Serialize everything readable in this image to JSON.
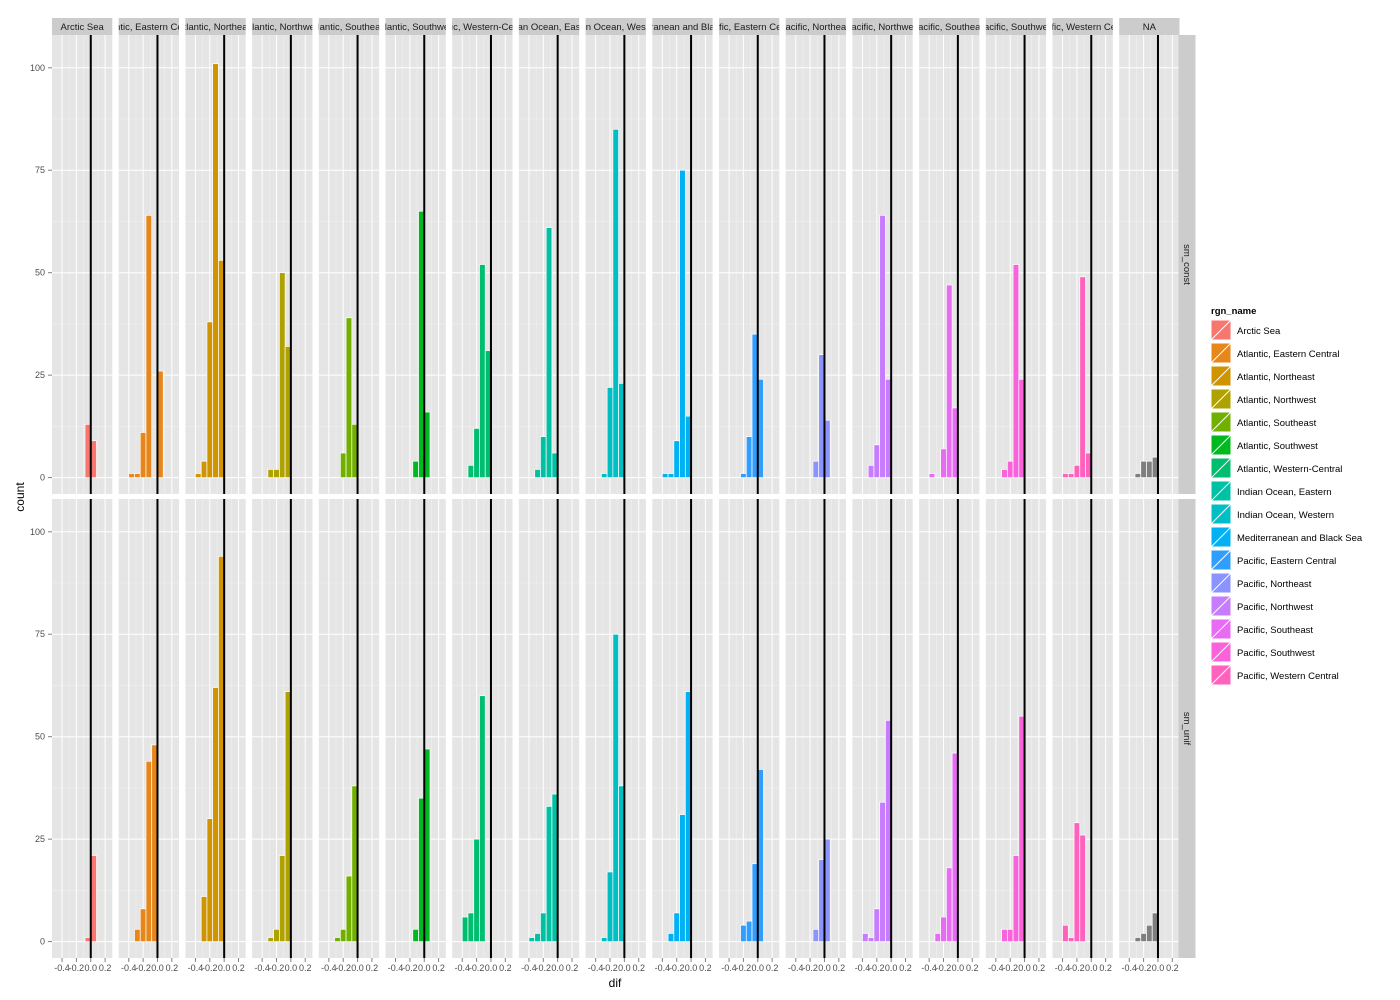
{
  "chart_data": {
    "type": "bar",
    "xlabel": "dif",
    "ylabel": "count",
    "ylim": [
      -4,
      108
    ],
    "xlim": [
      -0.54,
      0.3
    ],
    "x_ticks": [
      -0.4,
      -0.2,
      0.0,
      0.2
    ],
    "x_tick_labels": [
      "-0.4",
      "-0.2",
      "0.0",
      "0.2"
    ],
    "y_ticks": [
      0,
      25,
      50,
      75,
      100
    ],
    "y_tick_labels": [
      "0",
      "25",
      "50",
      "75",
      "100"
    ],
    "vline_x": 0.0,
    "bin_width": 0.08,
    "grid": true,
    "legend_position": "right",
    "legend": {
      "title": "rgn_name",
      "entries": [
        {
          "label": "Arctic Sea",
          "color": "#F8766D"
        },
        {
          "label": "Atlantic, Eastern Central",
          "color": "#E7861B"
        },
        {
          "label": "Atlantic, Northeast",
          "color": "#CF9400"
        },
        {
          "label": "Atlantic, Northwest",
          "color": "#AFA100"
        },
        {
          "label": "Atlantic, Southeast",
          "color": "#72B000"
        },
        {
          "label": "Atlantic, Southwest",
          "color": "#00B81F"
        },
        {
          "label": "Atlantic, Western-Central",
          "color": "#00BE70"
        },
        {
          "label": "Indian Ocean, Eastern",
          "color": "#00C1A3"
        },
        {
          "label": "Indian Ocean, Western",
          "color": "#00BFC4"
        },
        {
          "label": "Mediterranean and Black Sea",
          "color": "#00B2F3"
        },
        {
          "label": "Pacific, Eastern Central",
          "color": "#309EFF"
        },
        {
          "label": "Pacific, Northeast",
          "color": "#8B93FF"
        },
        {
          "label": "Pacific, Northwest",
          "color": "#C77CFF"
        },
        {
          "label": "Pacific, Southeast",
          "color": "#E76BF3"
        },
        {
          "label": "Pacific, Southwest",
          "color": "#FA62DB"
        },
        {
          "label": "Pacific, Western Central",
          "color": "#FF62BC"
        }
      ]
    },
    "rows": [
      {
        "label": "sm_const"
      },
      {
        "label": "sm_unif"
      }
    ],
    "columns": [
      {
        "strip": "Arctic Sea",
        "color": "#F8766D",
        "bins": [
          [
            -0.04,
            13
          ],
          [
            0.04,
            9
          ]
        ],
        "bins2": [
          [
            -0.04,
            1
          ],
          [
            0.04,
            21
          ]
        ]
      },
      {
        "strip": "ntic, Eastern Ce",
        "color": "#E7861B",
        "bins": [
          [
            -0.36,
            1
          ],
          [
            -0.28,
            1
          ],
          [
            -0.2,
            11
          ],
          [
            -0.12,
            64
          ],
          [
            -0.04,
            0
          ],
          [
            0.04,
            26
          ]
        ],
        "bins2": [
          [
            -0.28,
            3
          ],
          [
            -0.2,
            8
          ],
          [
            -0.12,
            44
          ],
          [
            -0.04,
            48
          ]
        ]
      },
      {
        "strip": "tlantic, Northea",
        "color": "#CF9400",
        "bins": [
          [
            -0.36,
            1
          ],
          [
            -0.28,
            4
          ],
          [
            -0.2,
            38
          ],
          [
            -0.12,
            101
          ],
          [
            -0.04,
            53
          ]
        ],
        "bins2": [
          [
            -0.28,
            11
          ],
          [
            -0.2,
            30
          ],
          [
            -0.12,
            62
          ],
          [
            -0.04,
            94
          ]
        ]
      },
      {
        "strip": "tlantic, Northwe",
        "color": "#AFA100",
        "bins": [
          [
            -0.28,
            2
          ],
          [
            -0.2,
            2
          ],
          [
            -0.12,
            50
          ],
          [
            -0.04,
            32
          ]
        ],
        "bins2": [
          [
            -0.28,
            1
          ],
          [
            -0.2,
            3
          ],
          [
            -0.12,
            21
          ],
          [
            -0.04,
            61
          ]
        ]
      },
      {
        "strip": "lantic, Southea",
        "color": "#72B000",
        "bins": [
          [
            -0.2,
            6
          ],
          [
            -0.12,
            39
          ],
          [
            -0.04,
            13
          ]
        ],
        "bins2": [
          [
            -0.28,
            1
          ],
          [
            -0.2,
            3
          ],
          [
            -0.12,
            16
          ],
          [
            -0.04,
            38
          ]
        ]
      },
      {
        "strip": "tlantic, Southwe",
        "color": "#00B81F",
        "bins": [
          [
            -0.12,
            4
          ],
          [
            -0.04,
            65
          ],
          [
            0.04,
            16
          ]
        ],
        "bins2": [
          [
            -0.12,
            3
          ],
          [
            -0.04,
            35
          ],
          [
            0.04,
            47
          ]
        ]
      },
      {
        "strip": "ic, Western-Ce",
        "color": "#00BE70",
        "bins": [
          [
            -0.28,
            3
          ],
          [
            -0.2,
            12
          ],
          [
            -0.12,
            52
          ],
          [
            -0.04,
            31
          ]
        ],
        "bins2": [
          [
            -0.36,
            6
          ],
          [
            -0.28,
            7
          ],
          [
            -0.2,
            25
          ],
          [
            -0.12,
            60
          ]
        ]
      },
      {
        "strip": "an Ocean, Eas",
        "color": "#00C1A3",
        "bins": [
          [
            -0.28,
            2
          ],
          [
            -0.2,
            10
          ],
          [
            -0.12,
            61
          ],
          [
            -0.04,
            6
          ]
        ],
        "bins2": [
          [
            -0.36,
            1
          ],
          [
            -0.28,
            2
          ],
          [
            -0.2,
            7
          ],
          [
            -0.12,
            33
          ],
          [
            -0.04,
            36
          ]
        ]
      },
      {
        "strip": "n Ocean, Wes",
        "color": "#00BFC4",
        "bins": [
          [
            -0.28,
            1
          ],
          [
            -0.2,
            22
          ],
          [
            -0.12,
            85
          ],
          [
            -0.04,
            23
          ]
        ],
        "bins2": [
          [
            -0.28,
            1
          ],
          [
            -0.2,
            17
          ],
          [
            -0.12,
            75
          ],
          [
            -0.04,
            38
          ]
        ]
      },
      {
        "strip": "ranean and Bla",
        "color": "#00B2F3",
        "bins": [
          [
            -0.36,
            1
          ],
          [
            -0.28,
            1
          ],
          [
            -0.2,
            9
          ],
          [
            -0.12,
            75
          ],
          [
            -0.04,
            15
          ]
        ],
        "bins2": [
          [
            -0.28,
            2
          ],
          [
            -0.2,
            7
          ],
          [
            -0.12,
            31
          ],
          [
            -0.04,
            61
          ]
        ]
      },
      {
        "strip": "ific, Eastern Ce",
        "color": "#309EFF",
        "bins": [
          [
            -0.2,
            1
          ],
          [
            -0.12,
            10
          ],
          [
            -0.04,
            35
          ],
          [
            0.04,
            24
          ]
        ],
        "bins2": [
          [
            -0.2,
            4
          ],
          [
            -0.12,
            5
          ],
          [
            -0.04,
            19
          ],
          [
            0.04,
            42
          ]
        ]
      },
      {
        "strip": "acific, Northea",
        "color": "#8B93FF",
        "bins": [
          [
            -0.12,
            4
          ],
          [
            -0.04,
            30
          ],
          [
            0.04,
            14
          ]
        ],
        "bins2": [
          [
            -0.12,
            3
          ],
          [
            -0.04,
            20
          ],
          [
            0.04,
            25
          ]
        ]
      },
      {
        "strip": "acific, Northwe",
        "color": "#C77CFF",
        "bins": [
          [
            -0.28,
            3
          ],
          [
            -0.2,
            8
          ],
          [
            -0.12,
            64
          ],
          [
            -0.04,
            24
          ]
        ],
        "bins2": [
          [
            -0.36,
            2
          ],
          [
            -0.28,
            1
          ],
          [
            -0.2,
            8
          ],
          [
            -0.12,
            34
          ],
          [
            -0.04,
            54
          ]
        ]
      },
      {
        "strip": "acific, Southea",
        "color": "#E76BF3",
        "bins": [
          [
            -0.36,
            1
          ],
          [
            -0.2,
            7
          ],
          [
            -0.12,
            47
          ],
          [
            -0.04,
            17
          ]
        ],
        "bins2": [
          [
            -0.28,
            2
          ],
          [
            -0.2,
            6
          ],
          [
            -0.12,
            18
          ],
          [
            -0.04,
            46
          ]
        ]
      },
      {
        "strip": "acific, Southwe",
        "color": "#FA62DB",
        "bins": [
          [
            -0.28,
            2
          ],
          [
            -0.2,
            4
          ],
          [
            -0.12,
            52
          ],
          [
            -0.04,
            24
          ]
        ],
        "bins2": [
          [
            -0.28,
            3
          ],
          [
            -0.2,
            3
          ],
          [
            -0.12,
            21
          ],
          [
            -0.04,
            55
          ]
        ]
      },
      {
        "strip": "ific, Western Ce",
        "color": "#FF62BC",
        "bins": [
          [
            -0.36,
            1
          ],
          [
            -0.28,
            1
          ],
          [
            -0.2,
            3
          ],
          [
            -0.12,
            49
          ],
          [
            -0.04,
            6
          ]
        ],
        "bins2": [
          [
            -0.36,
            4
          ],
          [
            -0.28,
            1
          ],
          [
            -0.2,
            29
          ],
          [
            -0.12,
            26
          ]
        ]
      },
      {
        "strip": "NA",
        "color": "#7F7F7F",
        "bins": [
          [
            -0.28,
            1
          ],
          [
            -0.2,
            4
          ],
          [
            -0.12,
            4
          ],
          [
            -0.04,
            5
          ]
        ],
        "bins2": [
          [
            -0.28,
            1
          ],
          [
            -0.2,
            2
          ],
          [
            -0.12,
            4
          ],
          [
            -0.04,
            7
          ]
        ]
      }
    ]
  }
}
